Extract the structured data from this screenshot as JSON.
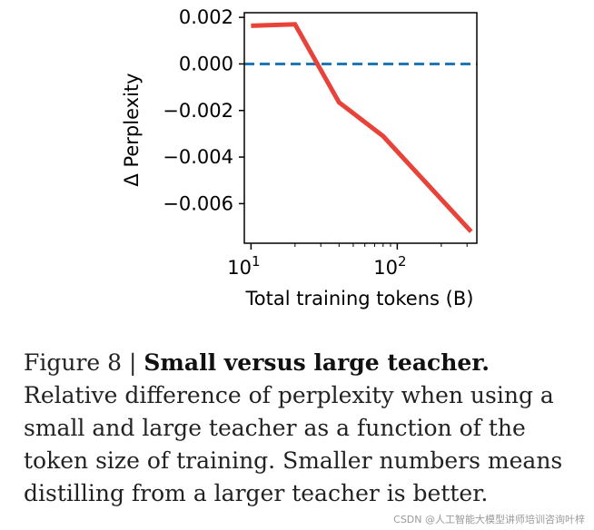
{
  "chart_data": {
    "type": "line",
    "xlabel": "Total training tokens (B)",
    "ylabel": "Δ Perplexity",
    "x_scale": "log",
    "xlim": [
      9,
      350
    ],
    "ylim": [
      -0.0077,
      0.0022
    ],
    "x_ticks": [
      {
        "value": 10,
        "base": "10",
        "exp": "1"
      },
      {
        "value": 100,
        "base": "10",
        "exp": "2"
      }
    ],
    "y_ticks": [
      {
        "value": 0.002,
        "label": "0.002"
      },
      {
        "value": 0.0,
        "label": "0.000"
      },
      {
        "value": -0.002,
        "label": "−0.002"
      },
      {
        "value": -0.004,
        "label": "−0.004"
      },
      {
        "value": -0.006,
        "label": "−0.006"
      }
    ],
    "series": [
      {
        "color": "#e8433a",
        "x": [
          10,
          20,
          40,
          80,
          320
        ],
        "y": [
          0.00164,
          0.0017,
          -0.00165,
          -0.0031,
          -0.0072
        ]
      }
    ],
    "reference_line": {
      "y": 0.0,
      "color": "#1f77b4",
      "style": "dashed"
    },
    "grid": false
  },
  "caption": {
    "prefix": "Figure 8 | ",
    "bold": "Small versus large teacher.",
    "text": " Relative difference of perplexity when using a small and large teacher as a function of the token size of training. Smaller numbers means distilling from a larger teacher is better."
  },
  "watermark": "CSDN @人工智能大模型讲师培训咨询叶梓"
}
